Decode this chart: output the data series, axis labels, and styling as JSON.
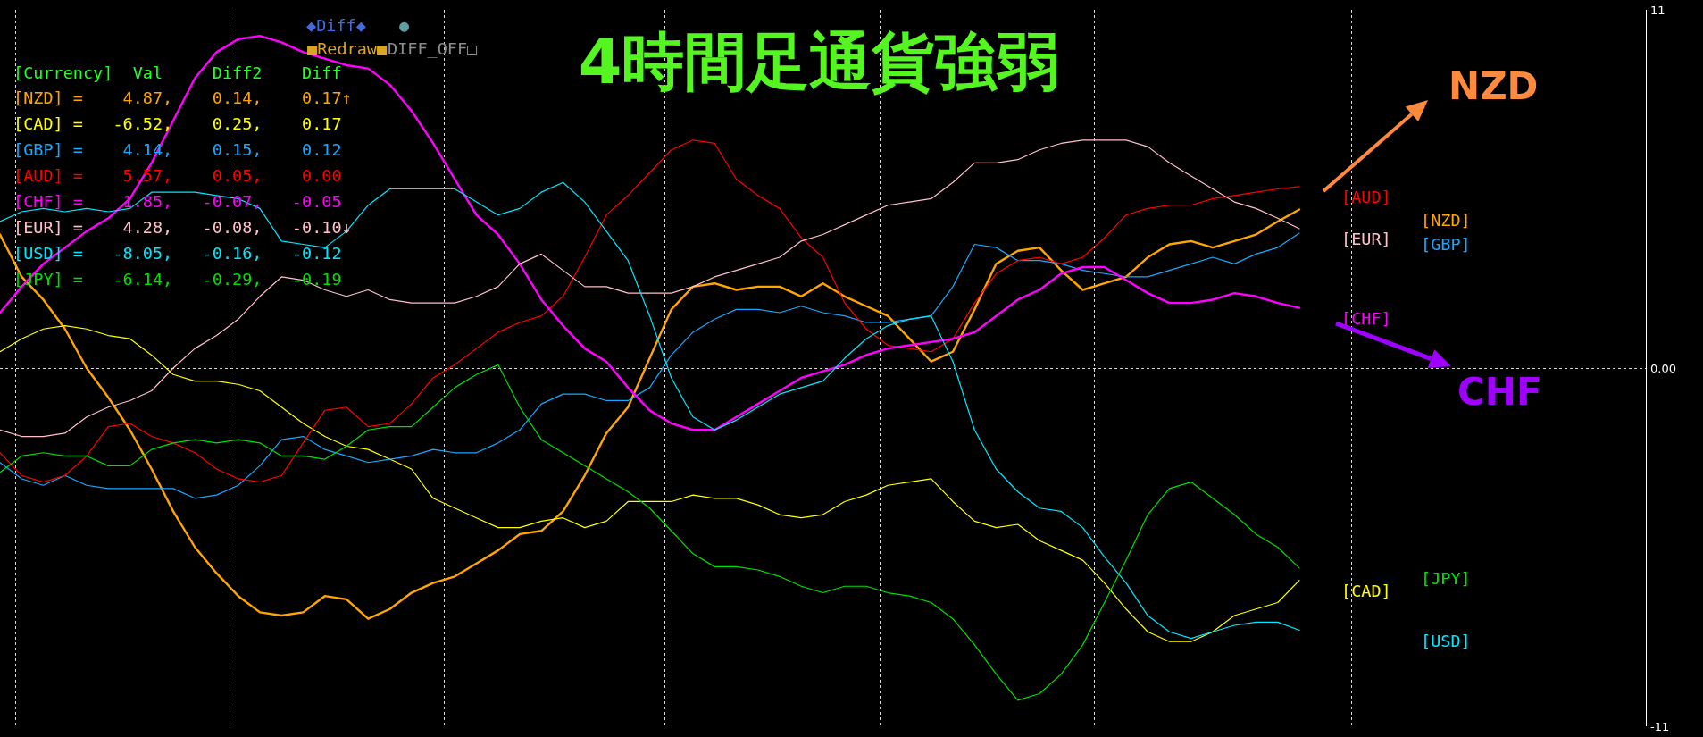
{
  "chart_data": {
    "type": "line",
    "title": "4時間足通貨強弱",
    "annotations": [
      "◆Diff◆",
      "●",
      "■Redraw■",
      "DIFF_OFF□",
      "[Currency]  Val     Diff2    Diff",
      "[NZD] =    4.87,    0.14,    0.17↑",
      "[CAD] =   -6.52,    0.25,    0.17",
      "[GBP] =    4.14,    0.15,    0.12",
      "[AUD] =    5.57,    0.05,    0.00",
      "[CHF] =    1.85,   -0.07,   -0.05",
      "[EUR] =    4.28,   -0.08,   -0.10↓",
      "[USD] =   -8.05,   -0.16,   -0.12",
      "[JPY] =   -6.14,   -0.29,   -0.19",
      "NZD",
      "CHF"
    ],
    "categories": [
      null,
      null,
      null,
      null,
      null,
      null,
      null,
      null,
      null,
      null,
      null,
      null,
      null,
      null,
      null,
      null,
      null,
      null,
      null,
      null,
      null,
      null,
      null,
      null,
      null,
      null,
      null,
      null,
      null,
      null,
      null,
      null,
      null,
      null,
      null,
      null,
      null,
      null,
      null,
      null,
      null,
      null,
      null,
      null,
      null,
      null,
      null,
      null,
      null,
      null,
      null,
      null,
      null,
      null,
      null,
      null,
      null,
      null,
      null,
      null,
      null,
      null,
      null,
      null,
      null,
      null,
      null,
      null,
      null,
      null,
      null,
      null,
      null,
      null,
      null,
      null
    ],
    "series": [
      {
        "name": "[NZD]",
        "color": "#ffa500",
        "values": [
          4.1,
          2.8,
          2.1,
          1.2,
          0.0,
          -0.9,
          -1.9,
          -3.1,
          -4.4,
          -5.5,
          -6.3,
          -7.0,
          -7.5,
          -7.6,
          -7.5,
          -7.0,
          -7.1,
          -7.7,
          -7.4,
          -6.9,
          -6.6,
          -6.4,
          -6.0,
          -5.6,
          -5.1,
          -5.0,
          -4.4,
          -3.3,
          -2.0,
          -1.2,
          0.3,
          1.8,
          2.5,
          2.6,
          2.4,
          2.5,
          2.5,
          2.2,
          2.6,
          2.2,
          1.9,
          1.6,
          0.9,
          0.2,
          0.5,
          1.8,
          3.2,
          3.6,
          3.7,
          3.0,
          2.4,
          2.6,
          2.8,
          3.4,
          3.8,
          3.9,
          3.7,
          3.9,
          4.1,
          4.5,
          4.87,
          null,
          null,
          null,
          null,
          null,
          null,
          null,
          null,
          null,
          null,
          null,
          null,
          null,
          null,
          null
        ]
      },
      {
        "name": "[CAD]",
        "color": "#ffff00",
        "values": [
          0.5,
          0.9,
          1.2,
          1.3,
          1.2,
          1.0,
          0.9,
          0.4,
          -0.2,
          -0.4,
          -0.4,
          -0.5,
          -0.7,
          -1.2,
          -1.7,
          -2.1,
          -2.4,
          -2.5,
          -2.8,
          -3.1,
          -4.0,
          -4.3,
          -4.6,
          -4.9,
          -4.9,
          -4.7,
          -4.6,
          -4.9,
          -4.7,
          -4.1,
          -4.1,
          -4.1,
          -3.9,
          -4.0,
          -4.0,
          -4.2,
          -4.5,
          -4.6,
          -4.5,
          -4.1,
          -3.9,
          -3.6,
          -3.5,
          -3.4,
          -4.1,
          -4.7,
          -4.9,
          -4.8,
          -5.3,
          -5.6,
          -5.9,
          -6.6,
          -7.4,
          -8.1,
          -8.4,
          -8.4,
          -8.1,
          -7.6,
          -7.4,
          -7.2,
          -6.52,
          null,
          null,
          null,
          null,
          null,
          null,
          null,
          null,
          null,
          null,
          null,
          null,
          null,
          null,
          null
        ]
      },
      {
        "name": "[GBP]",
        "color": "#18a8ff",
        "values": [
          -2.9,
          -3.4,
          -3.6,
          -3.3,
          -3.6,
          -3.7,
          -3.7,
          -3.7,
          -3.7,
          -4.0,
          -3.9,
          -3.6,
          -3.0,
          -2.2,
          -2.1,
          -2.5,
          -2.7,
          -2.9,
          -2.8,
          -2.7,
          -2.5,
          -2.6,
          -2.6,
          -2.3,
          -1.9,
          -1.1,
          -0.8,
          -0.8,
          -1.0,
          -1.0,
          -0.6,
          0.4,
          1.1,
          1.5,
          1.8,
          1.8,
          1.7,
          1.9,
          1.7,
          1.6,
          1.4,
          1.4,
          1.5,
          1.6,
          2.5,
          3.8,
          3.7,
          3.3,
          3.3,
          3.2,
          3.0,
          2.9,
          2.8,
          2.8,
          3.0,
          3.2,
          3.4,
          3.2,
          3.5,
          3.7,
          4.14,
          null,
          null,
          null,
          null,
          null,
          null,
          null,
          null,
          null,
          null,
          null,
          null,
          null,
          null,
          null
        ]
      },
      {
        "name": "[AUD]",
        "color": "#ff0000",
        "values": [
          -2.6,
          -3.3,
          -3.5,
          -3.3,
          -2.7,
          -1.8,
          -1.7,
          -2.1,
          -2.3,
          -2.6,
          -3.1,
          -3.4,
          -3.5,
          -3.3,
          -2.3,
          -1.3,
          -1.2,
          -1.8,
          -1.7,
          -1.1,
          -0.3,
          0.1,
          0.6,
          1.1,
          1.4,
          1.6,
          2.2,
          3.4,
          4.7,
          5.3,
          6.0,
          6.7,
          7.0,
          6.9,
          5.8,
          5.3,
          4.9,
          4.0,
          3.4,
          2.0,
          1.2,
          0.7,
          0.6,
          0.5,
          0.9,
          2.0,
          2.9,
          3.3,
          3.4,
          3.2,
          3.4,
          4.0,
          4.7,
          4.9,
          5.0,
          5.0,
          5.2,
          5.3,
          5.4,
          5.5,
          5.57,
          null,
          null,
          null,
          null,
          null,
          null,
          null,
          null,
          null,
          null,
          null,
          null,
          null,
          null,
          null
        ]
      },
      {
        "name": "[CHF]",
        "color": "#ff00ff",
        "values": [
          1.7,
          2.5,
          3.2,
          3.7,
          4.2,
          4.6,
          5.2,
          6.3,
          7.6,
          8.9,
          9.7,
          10.1,
          10.2,
          10.0,
          9.7,
          9.5,
          9.3,
          9.2,
          8.7,
          7.9,
          6.9,
          5.8,
          4.7,
          4.1,
          3.2,
          2.1,
          1.3,
          0.6,
          0.2,
          -0.6,
          -1.3,
          -1.7,
          -1.9,
          -1.9,
          -1.5,
          -1.1,
          -0.7,
          -0.3,
          -0.1,
          0.1,
          0.4,
          0.6,
          0.7,
          0.8,
          0.9,
          1.1,
          1.6,
          2.1,
          2.4,
          2.9,
          3.1,
          3.1,
          2.7,
          2.3,
          2.0,
          2.0,
          2.1,
          2.3,
          2.2,
          2.0,
          1.85,
          null,
          null,
          null,
          null,
          null,
          null,
          null,
          null,
          null,
          null,
          null,
          null,
          null,
          null,
          null
        ]
      },
      {
        "name": "[EUR]",
        "color": "#ffc0cb",
        "values": [
          -1.9,
          -2.1,
          -2.1,
          -2.0,
          -1.5,
          -1.2,
          -1.0,
          -0.7,
          0.0,
          0.6,
          1.0,
          1.5,
          2.2,
          2.8,
          2.7,
          2.4,
          2.2,
          2.4,
          2.1,
          2.0,
          2.0,
          2.0,
          2.2,
          2.5,
          3.2,
          3.5,
          3.0,
          2.5,
          2.5,
          2.3,
          2.3,
          2.3,
          2.5,
          2.8,
          3.0,
          3.2,
          3.4,
          3.9,
          4.1,
          4.4,
          4.7,
          5.0,
          5.1,
          5.2,
          5.7,
          6.3,
          6.3,
          6.4,
          6.7,
          6.9,
          7.0,
          7.0,
          7.0,
          6.8,
          6.3,
          5.9,
          5.5,
          5.1,
          4.9,
          4.6,
          4.28,
          null,
          null,
          null,
          null,
          null,
          null,
          null,
          null,
          null,
          null,
          null,
          null,
          null,
          null,
          null
        ]
      },
      {
        "name": "[USD]",
        "color": "#00e8ff",
        "values": [
          4.5,
          4.8,
          4.9,
          4.8,
          4.9,
          4.8,
          4.9,
          5.4,
          5.4,
          5.4,
          5.3,
          5.2,
          4.9,
          3.9,
          3.8,
          3.7,
          4.2,
          5.0,
          5.5,
          5.5,
          5.5,
          5.5,
          5.1,
          4.7,
          4.9,
          5.4,
          5.7,
          5.1,
          4.2,
          3.3,
          1.6,
          -0.3,
          -1.5,
          -1.9,
          -1.6,
          -1.2,
          -0.8,
          -0.6,
          -0.4,
          0.3,
          0.9,
          1.3,
          1.5,
          1.6,
          0.2,
          -1.9,
          -3.1,
          -3.8,
          -4.3,
          -4.4,
          -4.9,
          -5.8,
          -6.6,
          -7.6,
          -8.1,
          -8.3,
          -8.1,
          -7.9,
          -7.8,
          -7.8,
          -8.05,
          null,
          null,
          null,
          null,
          null,
          null,
          null,
          null,
          null,
          null,
          null,
          null,
          null,
          null,
          null
        ]
      },
      {
        "name": "[JPY]",
        "color": "#00e000",
        "values": [
          -3.2,
          -2.7,
          -2.6,
          -2.7,
          -2.7,
          -3.0,
          -3.0,
          -2.5,
          -2.3,
          -2.2,
          -2.3,
          -2.2,
          -2.3,
          -2.7,
          -2.7,
          -2.8,
          -2.4,
          -1.9,
          -1.8,
          -1.8,
          -1.2,
          -0.6,
          -0.2,
          0.1,
          -1.2,
          -2.2,
          -2.6,
          -3.0,
          -3.4,
          -3.8,
          -4.3,
          -5.0,
          -5.7,
          -6.1,
          -6.1,
          -6.2,
          -6.4,
          -6.7,
          -6.9,
          -6.7,
          -6.7,
          -6.9,
          -7.0,
          -7.2,
          -7.7,
          -8.5,
          -9.4,
          -10.2,
          -10.0,
          -9.4,
          -8.5,
          -7.2,
          -5.9,
          -4.5,
          -3.7,
          -3.5,
          -4.0,
          -4.5,
          -5.1,
          -5.5,
          -6.14,
          null,
          null,
          null,
          null,
          null,
          null,
          null,
          null,
          null,
          null,
          null,
          null,
          null,
          null,
          null
        ]
      }
    ],
    "ylim": [
      -11,
      11
    ],
    "yticks": [
      11,
      {
        "value": 0,
        "label": "0.00"
      },
      -11
    ],
    "tick_labels": "y",
    "ref_lines": [
      {
        "axis": "y",
        "value": 0,
        "color": "#d8d8d8",
        "line_style": "dotted"
      }
    ]
  }
}
